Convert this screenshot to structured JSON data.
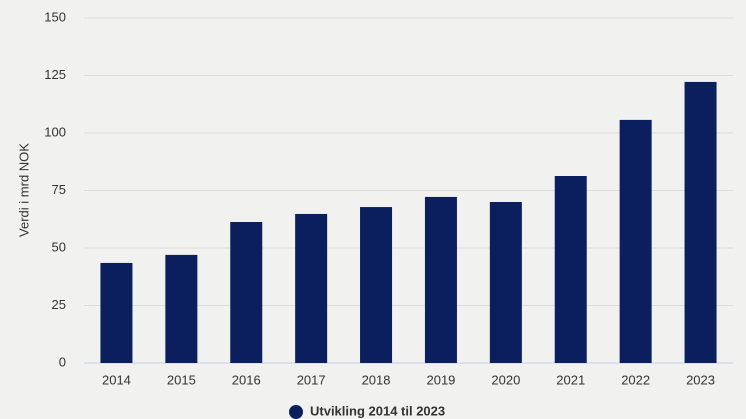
{
  "chart_data": {
    "type": "bar",
    "y_label": "Verdi i mrd NOK",
    "categories": [
      "2014",
      "2015",
      "2016",
      "2017",
      "2018",
      "2019",
      "2020",
      "2021",
      "2022",
      "2023"
    ],
    "series": [
      {
        "name": "Utvikling 2014 til 2023",
        "color": "#0b1f5e",
        "values": [
          43.5,
          47,
          61.3,
          64.8,
          67.8,
          72.2,
          70,
          81.3,
          105.7,
          122.2
        ]
      }
    ],
    "ylim": [
      0,
      150
    ],
    "yticks": [
      0,
      25,
      50,
      75,
      100,
      125,
      150
    ],
    "grid": true,
    "legend": "bottom"
  }
}
